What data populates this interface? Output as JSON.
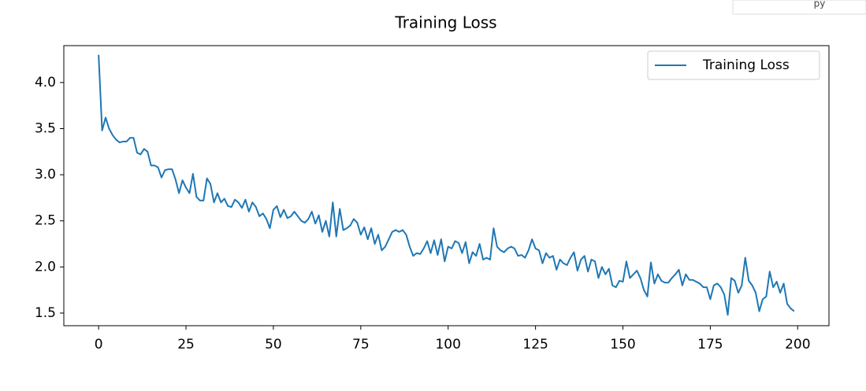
{
  "corner_text": "py",
  "chart_data": {
    "type": "line",
    "title": "Training Loss",
    "x": [
      0,
      1,
      2,
      3,
      4,
      5,
      6,
      7,
      8,
      9,
      10,
      11,
      12,
      13,
      14,
      15,
      16,
      17,
      18,
      19,
      20,
      21,
      22,
      23,
      24,
      25,
      26,
      27,
      28,
      29,
      30,
      31,
      32,
      33,
      34,
      35,
      36,
      37,
      38,
      39,
      40,
      41,
      42,
      43,
      44,
      45,
      46,
      47,
      48,
      49,
      50,
      51,
      52,
      53,
      54,
      55,
      56,
      57,
      58,
      59,
      60,
      61,
      62,
      63,
      64,
      65,
      66,
      67,
      68,
      69,
      70,
      71,
      72,
      73,
      74,
      75,
      76,
      77,
      78,
      79,
      80,
      81,
      82,
      83,
      84,
      85,
      86,
      87,
      88,
      89,
      90,
      91,
      92,
      93,
      94,
      95,
      96,
      97,
      98,
      99,
      100,
      101,
      102,
      103,
      104,
      105,
      106,
      107,
      108,
      109,
      110,
      111,
      112,
      113,
      114,
      115,
      116,
      117,
      118,
      119,
      120,
      121,
      122,
      123,
      124,
      125,
      126,
      127,
      128,
      129,
      130,
      131,
      132,
      133,
      134,
      135,
      136,
      137,
      138,
      139,
      140,
      141,
      142,
      143,
      144,
      145,
      146,
      147,
      148,
      149,
      150,
      151,
      152,
      153,
      154,
      155,
      156,
      157,
      158,
      159,
      160,
      161,
      162,
      163,
      164,
      165,
      166,
      167,
      168,
      169,
      170,
      171,
      172,
      173,
      174,
      175,
      176,
      177,
      178,
      179,
      180,
      181,
      182,
      183,
      184,
      185,
      186,
      187,
      188,
      189,
      190,
      191,
      192,
      193,
      194,
      195,
      196,
      197,
      198,
      199
    ],
    "series": [
      {
        "name": "Training Loss",
        "color": "#1f77b4",
        "values": [
          4.3,
          3.48,
          3.62,
          3.5,
          3.43,
          3.38,
          3.35,
          3.36,
          3.36,
          3.4,
          3.4,
          3.24,
          3.22,
          3.28,
          3.25,
          3.1,
          3.1,
          3.08,
          2.97,
          3.05,
          3.06,
          3.06,
          2.95,
          2.8,
          2.94,
          2.86,
          2.8,
          3.01,
          2.76,
          2.72,
          2.72,
          2.96,
          2.9,
          2.7,
          2.8,
          2.7,
          2.74,
          2.66,
          2.65,
          2.73,
          2.7,
          2.64,
          2.73,
          2.6,
          2.7,
          2.65,
          2.55,
          2.58,
          2.52,
          2.42,
          2.62,
          2.66,
          2.54,
          2.62,
          2.53,
          2.55,
          2.6,
          2.55,
          2.5,
          2.48,
          2.52,
          2.6,
          2.47,
          2.56,
          2.38,
          2.5,
          2.33,
          2.7,
          2.33,
          2.63,
          2.4,
          2.42,
          2.45,
          2.52,
          2.48,
          2.35,
          2.43,
          2.3,
          2.42,
          2.25,
          2.35,
          2.18,
          2.22,
          2.3,
          2.38,
          2.4,
          2.38,
          2.4,
          2.35,
          2.22,
          2.12,
          2.15,
          2.14,
          2.2,
          2.28,
          2.15,
          2.29,
          2.13,
          2.3,
          2.06,
          2.22,
          2.2,
          2.28,
          2.26,
          2.15,
          2.27,
          2.04,
          2.16,
          2.12,
          2.25,
          2.08,
          2.1,
          2.08,
          2.42,
          2.22,
          2.18,
          2.16,
          2.2,
          2.22,
          2.2,
          2.12,
          2.13,
          2.1,
          2.18,
          2.3,
          2.2,
          2.18,
          2.04,
          2.15,
          2.1,
          2.12,
          1.97,
          2.08,
          2.04,
          2.02,
          2.1,
          2.16,
          1.96,
          2.08,
          2.12,
          1.95,
          2.08,
          2.06,
          1.88,
          2.0,
          1.92,
          1.98,
          1.8,
          1.78,
          1.85,
          1.84,
          2.06,
          1.88,
          1.92,
          1.96,
          1.88,
          1.75,
          1.68,
          2.05,
          1.82,
          1.92,
          1.85,
          1.83,
          1.83,
          1.88,
          1.92,
          1.97,
          1.8,
          1.92,
          1.86,
          1.86,
          1.84,
          1.82,
          1.78,
          1.78,
          1.65,
          1.8,
          1.82,
          1.78,
          1.7,
          1.48,
          1.88,
          1.85,
          1.72,
          1.8,
          2.1,
          1.85,
          1.8,
          1.72,
          1.52,
          1.65,
          1.68,
          1.95,
          1.78,
          1.84,
          1.72,
          1.82,
          1.6,
          1.55,
          1.52
        ]
      }
    ],
    "xlim": [
      -9.95,
      208.95
    ],
    "ylim": [
      1.363,
      4.4
    ],
    "xticks": [
      0,
      25,
      50,
      75,
      100,
      125,
      150,
      175,
      200
    ],
    "yticks": [
      1.5,
      {
        "value": 2,
        "label": "2.0"
      },
      2.5,
      {
        "value": 3,
        "label": "3.0"
      },
      3.5,
      {
        "value": 4,
        "label": "4.0"
      }
    ],
    "grid": false,
    "legend": "upper right"
  }
}
